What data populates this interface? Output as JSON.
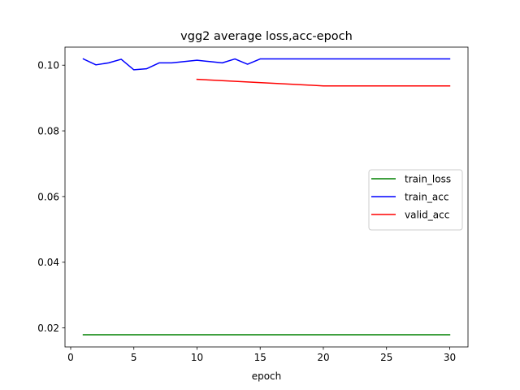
{
  "chart_data": {
    "type": "line",
    "title": "vgg2 average loss,acc-epoch",
    "xlabel": "epoch",
    "ylabel": "",
    "xlim": [
      -0.45,
      31.45
    ],
    "ylim": [
      0.0142,
      0.1055
    ],
    "xticks": [
      0,
      5,
      10,
      15,
      20,
      25,
      30
    ],
    "yticks": [
      0.02,
      0.04,
      0.06,
      0.08,
      0.1
    ],
    "ytick_labels": [
      "0.02",
      "0.04",
      "0.06",
      "0.08",
      "0.10"
    ],
    "grid": false,
    "legend_position": "center-right",
    "series": [
      {
        "name": "train_loss",
        "color": "#008000",
        "x": [
          1,
          2,
          3,
          4,
          5,
          6,
          7,
          8,
          9,
          10,
          11,
          12,
          13,
          14,
          15,
          16,
          17,
          18,
          19,
          20,
          21,
          22,
          23,
          24,
          25,
          26,
          27,
          28,
          29,
          30
        ],
        "y": [
          0.0179,
          0.0179,
          0.0179,
          0.0179,
          0.0179,
          0.0179,
          0.0179,
          0.0179,
          0.0179,
          0.0179,
          0.0179,
          0.0179,
          0.0179,
          0.0179,
          0.0179,
          0.0179,
          0.0179,
          0.0179,
          0.0179,
          0.0179,
          0.0179,
          0.0179,
          0.0179,
          0.0179,
          0.0179,
          0.0179,
          0.0179,
          0.0179,
          0.0179,
          0.0179
        ]
      },
      {
        "name": "train_acc",
        "color": "#0000ff",
        "x": [
          1,
          2,
          3,
          4,
          5,
          6,
          7,
          8,
          9,
          10,
          11,
          12,
          13,
          14,
          15,
          16,
          17,
          18,
          19,
          20,
          21,
          22,
          23,
          24,
          25,
          26,
          27,
          28,
          29,
          30
        ],
        "y": [
          0.1019,
          0.1001,
          0.1007,
          0.1018,
          0.0986,
          0.0989,
          0.1007,
          0.1007,
          0.1011,
          0.1015,
          0.1011,
          0.1007,
          0.1019,
          0.1003,
          0.1019,
          0.1019,
          0.1019,
          0.1019,
          0.1019,
          0.1019,
          0.1019,
          0.1019,
          0.1019,
          0.1019,
          0.1019,
          0.1019,
          0.1019,
          0.1019,
          0.1019,
          0.1019
        ]
      },
      {
        "name": "valid_acc",
        "color": "#ff0000",
        "x": [
          10,
          20,
          30
        ],
        "y": [
          0.0957,
          0.0937,
          0.0937
        ]
      }
    ]
  }
}
